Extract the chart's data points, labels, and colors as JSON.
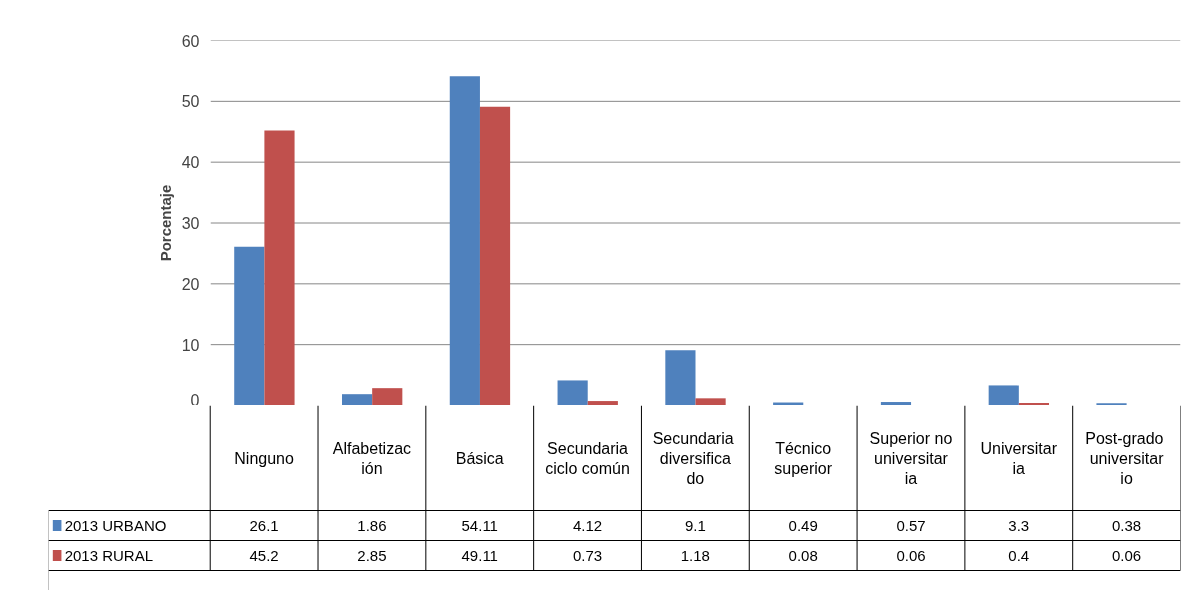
{
  "chart_data": {
    "type": "bar",
    "ylabel": "Porcentaje",
    "categories": [
      "Ninguno",
      "Alfabetización",
      "Básica",
      "Secundaria ciclo común",
      "Secundaria diversificado",
      "Técnico superior",
      "Superior no universitaria",
      "Universitaria",
      "Post-grado universitario"
    ],
    "series": [
      {
        "name": "2013 URBANO",
        "color": "#4f81bd",
        "values": [
          26.1,
          1.86,
          54.11,
          4.12,
          9.1,
          0.49,
          0.57,
          3.3,
          0.38
        ]
      },
      {
        "name": "2013 RURAL",
        "color": "#c0504d",
        "values": [
          45.2,
          2.85,
          49.11,
          0.73,
          1.18,
          0.08,
          0.06,
          0.4,
          0.06
        ]
      }
    ],
    "ylim": [
      0,
      60
    ],
    "yticks": [
      0,
      10,
      20,
      30,
      40,
      50,
      60
    ],
    "grid": "y",
    "data_labels": true,
    "legend": "bottom"
  }
}
